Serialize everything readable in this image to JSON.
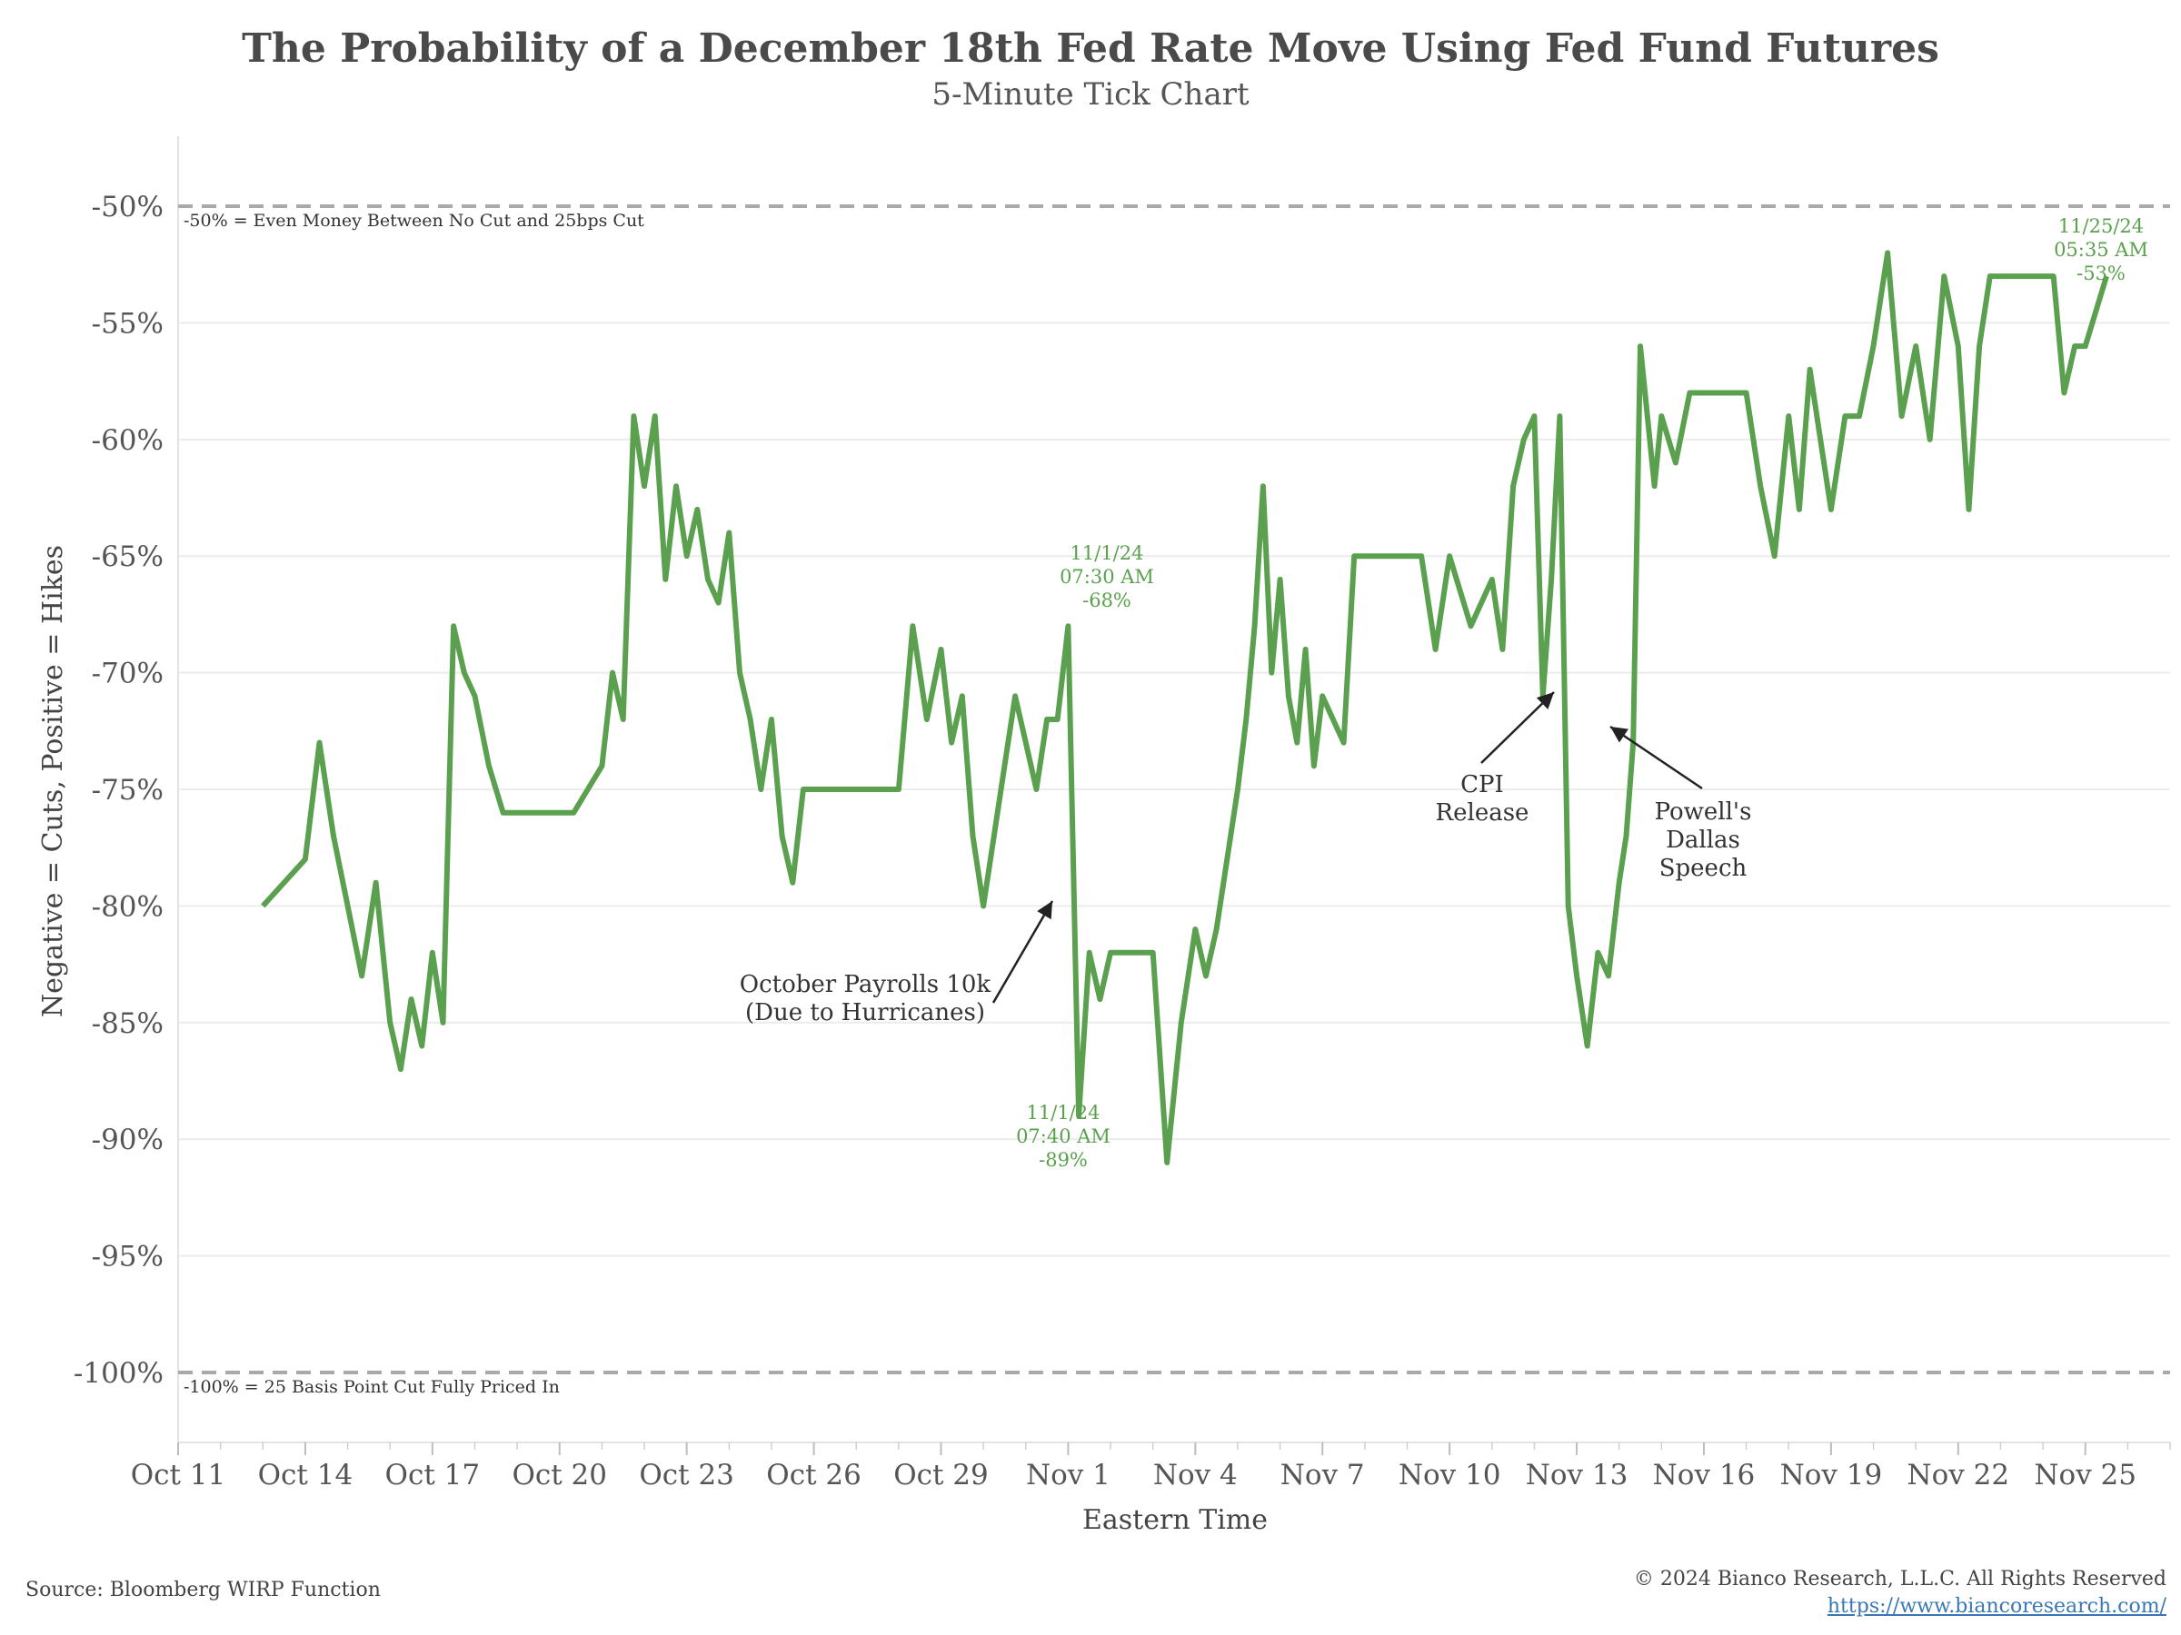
{
  "chart_data": {
    "type": "line",
    "title": "The Probability of a December 18th Fed Rate Move Using Fed Fund Futures",
    "subtitle": "5-Minute Tick Chart",
    "xlabel": "Eastern Time",
    "ylabel": "Negative = Cuts, Positive = Hikes",
    "x_tick_labels": [
      "Oct 11",
      "Oct 14",
      "Oct 17",
      "Oct 20",
      "Oct 23",
      "Oct 26",
      "Oct 29",
      "Nov 1",
      "Nov 4",
      "Nov 7",
      "Nov 10",
      "Nov 13",
      "Nov 16",
      "Nov 19",
      "Nov 22",
      "Nov 25"
    ],
    "y_tick_labels": [
      "-50%",
      "-55%",
      "-60%",
      "-65%",
      "-70%",
      "-75%",
      "-80%",
      "-85%",
      "-90%",
      "-95%",
      "-100%"
    ],
    "ylim": [
      -103,
      -47
    ],
    "xlim_days": [
      0,
      47
    ],
    "line_color": "#5aa04e",
    "reference_lines": [
      {
        "y": -50,
        "label": "-50% = Even Money Between No Cut and 25bps Cut"
      },
      {
        "y": -100,
        "label": "-100% = 25 Basis Point Cut Fully Priced In"
      }
    ],
    "series": [
      {
        "points": [
          [
            "Oct 13",
            -80
          ],
          [
            "Oct 14",
            -78
          ],
          [
            "Oct 14",
            -73
          ],
          [
            "Oct 14",
            -77
          ],
          [
            "Oct 15",
            -80
          ],
          [
            "Oct 15",
            -83
          ],
          [
            "Oct 15",
            -79
          ],
          [
            "Oct 16",
            -85
          ],
          [
            "Oct 16",
            -87
          ],
          [
            "Oct 16",
            -84
          ],
          [
            "Oct 16",
            -86
          ],
          [
            "Oct 17",
            -82
          ],
          [
            "Oct 17",
            -85
          ],
          [
            "Oct 17",
            -68
          ],
          [
            "Oct 17",
            -70
          ],
          [
            "Oct 18",
            -71
          ],
          [
            "Oct 18",
            -74
          ],
          [
            "Oct 18",
            -76
          ],
          [
            "Oct 19",
            -76
          ],
          [
            "Oct 20",
            -76
          ],
          [
            "Oct 20",
            -76
          ],
          [
            "Oct 20",
            -75
          ],
          [
            "Oct 21",
            -74
          ],
          [
            "Oct 21",
            -70
          ],
          [
            "Oct 21",
            -72
          ],
          [
            "Oct 21",
            -59
          ],
          [
            "Oct 22",
            -62
          ],
          [
            "Oct 22",
            -59
          ],
          [
            "Oct 22",
            -66
          ],
          [
            "Oct 22",
            -62
          ],
          [
            "Oct 23",
            -65
          ],
          [
            "Oct 23",
            -63
          ],
          [
            "Oct 23",
            -66
          ],
          [
            "Oct 23",
            -67
          ],
          [
            "Oct 24",
            -64
          ],
          [
            "Oct 24",
            -70
          ],
          [
            "Oct 24",
            -72
          ],
          [
            "Oct 24",
            -75
          ],
          [
            "Oct 25",
            -72
          ],
          [
            "Oct 25",
            -77
          ],
          [
            "Oct 25",
            -79
          ],
          [
            "Oct 25",
            -75
          ],
          [
            "Oct 26",
            -75
          ],
          [
            "Oct 27",
            -75
          ],
          [
            "Oct 28",
            -75
          ],
          [
            "Oct 28",
            -68
          ],
          [
            "Oct 28",
            -72
          ],
          [
            "Oct 29",
            -69
          ],
          [
            "Oct 29",
            -73
          ],
          [
            "Oct 29",
            -71
          ],
          [
            "Oct 29",
            -77
          ],
          [
            "Oct 30",
            -80
          ],
          [
            "Oct 30",
            -77
          ],
          [
            "Oct 30",
            -74
          ],
          [
            "Oct 30",
            -71
          ],
          [
            "Oct 31",
            -73
          ],
          [
            "Oct 31",
            -75
          ],
          [
            "Oct 31",
            -72
          ],
          [
            "Oct 31",
            -72
          ],
          [
            "Nov 1",
            -68
          ],
          [
            "Nov 1",
            -89
          ],
          [
            "Nov 1",
            -82
          ],
          [
            "Nov 1",
            -84
          ],
          [
            "Nov 2",
            -82
          ],
          [
            "Nov 3",
            -82
          ],
          [
            "Nov 3",
            -91
          ],
          [
            "Nov 3",
            -85
          ],
          [
            "Nov 4",
            -81
          ],
          [
            "Nov 4",
            -83
          ],
          [
            "Nov 4",
            -81
          ],
          [
            "Nov 4",
            -78
          ],
          [
            "Nov 5",
            -75
          ],
          [
            "Nov 5",
            -72
          ],
          [
            "Nov 5",
            -68
          ],
          [
            "Nov 5",
            -62
          ],
          [
            "Nov 5",
            -70
          ],
          [
            "Nov 6",
            -66
          ],
          [
            "Nov 6",
            -71
          ],
          [
            "Nov 6",
            -73
          ],
          [
            "Nov 6",
            -69
          ],
          [
            "Nov 6",
            -74
          ],
          [
            "Nov 7",
            -71
          ],
          [
            "Nov 7",
            -72
          ],
          [
            "Nov 7",
            -73
          ],
          [
            "Nov 7",
            -65
          ],
          [
            "Nov 8",
            -65
          ],
          [
            "Nov 9",
            -65
          ],
          [
            "Nov 9",
            -65
          ],
          [
            "Nov 9",
            -69
          ],
          [
            "Nov 10",
            -65
          ],
          [
            "Nov 10",
            -68
          ],
          [
            "Nov 11",
            -66
          ],
          [
            "Nov 11",
            -69
          ],
          [
            "Nov 11",
            -62
          ],
          [
            "Nov 11",
            -60
          ],
          [
            "Nov 12",
            -59
          ],
          [
            "Nov 12",
            -71
          ],
          [
            "Nov 12",
            -66
          ],
          [
            "Nov 12",
            -59
          ],
          [
            "Nov 12",
            -80
          ],
          [
            "Nov 13",
            -83
          ],
          [
            "Nov 13",
            -86
          ],
          [
            "Nov 13",
            -82
          ],
          [
            "Nov 13",
            -83
          ],
          [
            "Nov 14",
            -79
          ],
          [
            "Nov 14",
            -77
          ],
          [
            "Nov 14",
            -73
          ],
          [
            "Nov 14",
            -56
          ],
          [
            "Nov 14",
            -59
          ],
          [
            "Nov 14",
            -62
          ],
          [
            "Nov 15",
            -59
          ],
          [
            "Nov 15",
            -61
          ],
          [
            "Nov 15",
            -58
          ],
          [
            "Nov 16",
            -58
          ],
          [
            "Nov 17",
            -58
          ],
          [
            "Nov 17",
            -62
          ],
          [
            "Nov 17",
            -65
          ],
          [
            "Nov 18",
            -59
          ],
          [
            "Nov 18",
            -63
          ],
          [
            "Nov 18",
            -57
          ],
          [
            "Nov 18",
            -60
          ],
          [
            "Nov 19",
            -63
          ],
          [
            "Nov 19",
            -59
          ],
          [
            "Nov 19",
            -59
          ],
          [
            "Nov 20",
            -56
          ],
          [
            "Nov 20",
            -52
          ],
          [
            "Nov 20",
            -59
          ],
          [
            "Nov 21",
            -56
          ],
          [
            "Nov 21",
            -60
          ],
          [
            "Nov 21",
            -53
          ],
          [
            "Nov 22",
            -56
          ],
          [
            "Nov 22",
            -63
          ],
          [
            "Nov 22",
            -56
          ],
          [
            "Nov 22",
            -53
          ],
          [
            "Nov 23",
            -53
          ],
          [
            "Nov 24",
            -53
          ],
          [
            "Nov 24",
            -53
          ],
          [
            "Nov 24",
            -58
          ],
          [
            "Nov 24",
            -56
          ],
          [
            "Nov 25",
            -56
          ],
          [
            "Nov 25",
            -53
          ]
        ]
      }
    ],
    "annotations": [
      {
        "text": [
          "11/1/24",
          "07:30 AM",
          "-68%"
        ],
        "color": "#5aa04e"
      },
      {
        "text": [
          "11/1/24",
          "07:40 AM",
          "-89%"
        ],
        "color": "#5aa04e"
      },
      {
        "text": [
          "11/25/24",
          "05:35 AM",
          "-53%"
        ],
        "color": "#5aa04e"
      },
      {
        "text": [
          "October Payrolls 10k",
          "(Due to Hurricanes)"
        ],
        "color": "#333333"
      },
      {
        "text": [
          "CPI",
          "Release"
        ],
        "color": "#333333"
      },
      {
        "text": [
          "Powell's",
          "Dallas",
          "Speech"
        ],
        "color": "#333333"
      }
    ]
  },
  "footer": {
    "source": "Source: Bloomberg WIRP Function",
    "copyright": "© 2024 Bianco Research, L.L.C. All Rights Reserved",
    "url": "https://www.biancoresearch.com/"
  }
}
